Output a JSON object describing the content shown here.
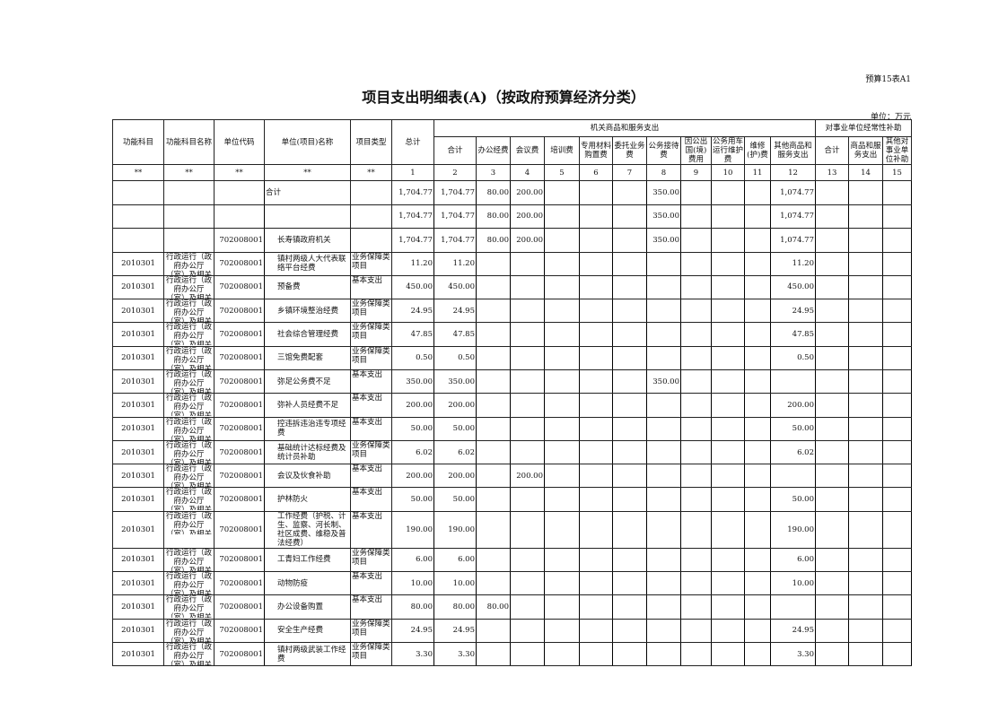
{
  "doc": {
    "code": "预算15表A1",
    "title": "项目支出明细表(A)（按政府预算经济分类）",
    "unit": "单位：万元"
  },
  "header": {
    "fixed": [
      "功能科目",
      "功能科目名称",
      "单位代码",
      "单位(项目)名称",
      "项目类型",
      "总计"
    ],
    "group1": "机关商品和服务支出",
    "group1_cols": [
      "合计",
      "办公经费",
      "会议费",
      "培训费",
      "专用材料购置费",
      "委托业务费",
      "公务接待费",
      "因公出国(境)费用",
      "公务用车运行维护费",
      "维修(护)费",
      "其他商品和服务支出"
    ],
    "group2": "对事业单位经常性补助",
    "group2_cols": [
      "合计",
      "商品和服务支出",
      "其他对事业单位补助"
    ],
    "index": [
      "**",
      "**",
      "**",
      "**",
      "**",
      "1",
      "2",
      "3",
      "4",
      "5",
      "6",
      "7",
      "8",
      "9",
      "10",
      "11",
      "12",
      "13",
      "14",
      "15"
    ]
  },
  "rows": [
    {
      "code": "",
      "name": "",
      "unit_code": "",
      "project": "合计",
      "type": "",
      "total": "1,704.77",
      "v": [
        "1,704.77",
        "80.00",
        "200.00",
        "",
        "",
        "",
        "350.00",
        "",
        "",
        "",
        "1,074.77",
        "",
        "",
        ""
      ]
    },
    {
      "code": "",
      "name": "",
      "unit_code": "",
      "project": "",
      "type": "",
      "total": "1,704.77",
      "v": [
        "1,704.77",
        "80.00",
        "200.00",
        "",
        "",
        "",
        "350.00",
        "",
        "",
        "",
        "1,074.77",
        "",
        "",
        ""
      ]
    },
    {
      "code": "",
      "name": "",
      "unit_code": "702008001",
      "project": "长寿镇政府机关",
      "type": "",
      "total": "1,704.77",
      "v": [
        "1,704.77",
        "80.00",
        "200.00",
        "",
        "",
        "",
        "350.00",
        "",
        "",
        "",
        "1,074.77",
        "",
        "",
        ""
      ]
    },
    {
      "code": "2010301",
      "name": "行政运行（政府办公厅（室）及相关",
      "unit_code": "702008001",
      "project": "镇村两级人大代表联络平台经费",
      "type": "业务保障类项目",
      "total": "11.20",
      "v": [
        "11.20",
        "",
        "",
        "",
        "",
        "",
        "",
        "",
        "",
        "",
        "11.20",
        "",
        "",
        ""
      ]
    },
    {
      "code": "2010301",
      "name": "行政运行（政府办公厅（室）及相关",
      "unit_code": "702008001",
      "project": "预备费",
      "type": "基本支出",
      "total": "450.00",
      "v": [
        "450.00",
        "",
        "",
        "",
        "",
        "",
        "",
        "",
        "",
        "",
        "450.00",
        "",
        "",
        ""
      ]
    },
    {
      "code": "2010301",
      "name": "行政运行（政府办公厅（室）及相关",
      "unit_code": "702008001",
      "project": "乡镇环境整治经费",
      "type": "业务保障类项目",
      "total": "24.95",
      "v": [
        "24.95",
        "",
        "",
        "",
        "",
        "",
        "",
        "",
        "",
        "",
        "24.95",
        "",
        "",
        ""
      ]
    },
    {
      "code": "2010301",
      "name": "行政运行（政府办公厅（室）及相关",
      "unit_code": "702008001",
      "project": "社会综合管理经费",
      "type": "业务保障类项目",
      "total": "47.85",
      "v": [
        "47.85",
        "",
        "",
        "",
        "",
        "",
        "",
        "",
        "",
        "",
        "47.85",
        "",
        "",
        ""
      ]
    },
    {
      "code": "2010301",
      "name": "行政运行（政府办公厅（室）及相关",
      "unit_code": "702008001",
      "project": "三馆免费配套",
      "type": "业务保障类项目",
      "total": "0.50",
      "v": [
        "0.50",
        "",
        "",
        "",
        "",
        "",
        "",
        "",
        "",
        "",
        "0.50",
        "",
        "",
        ""
      ]
    },
    {
      "code": "2010301",
      "name": "行政运行（政府办公厅（室）及相关",
      "unit_code": "702008001",
      "project": "弥足公务费不足",
      "type": "基本支出",
      "total": "350.00",
      "v": [
        "350.00",
        "",
        "",
        "",
        "",
        "",
        "350.00",
        "",
        "",
        "",
        "",
        "",
        "",
        ""
      ]
    },
    {
      "code": "2010301",
      "name": "行政运行（政府办公厅（室）及相关",
      "unit_code": "702008001",
      "project": "弥补人员经费不足",
      "type": "基本支出",
      "total": "200.00",
      "v": [
        "200.00",
        "",
        "",
        "",
        "",
        "",
        "",
        "",
        "",
        "",
        "200.00",
        "",
        "",
        ""
      ]
    },
    {
      "code": "2010301",
      "name": "行政运行（政府办公厅（室）及相关",
      "unit_code": "702008001",
      "project": "控违拆违治违专项经费",
      "type": "基本支出",
      "total": "50.00",
      "v": [
        "50.00",
        "",
        "",
        "",
        "",
        "",
        "",
        "",
        "",
        "",
        "50.00",
        "",
        "",
        ""
      ]
    },
    {
      "code": "2010301",
      "name": "行政运行（政府办公厅（室）及相关",
      "unit_code": "702008001",
      "project": "基础统计达标经费及统计员补助",
      "type": "业务保障类项目",
      "total": "6.02",
      "v": [
        "6.02",
        "",
        "",
        "",
        "",
        "",
        "",
        "",
        "",
        "",
        "6.02",
        "",
        "",
        ""
      ]
    },
    {
      "code": "2010301",
      "name": "行政运行（政府办公厅（室）及相关",
      "unit_code": "702008001",
      "project": "会议及伙食补助",
      "type": "基本支出",
      "total": "200.00",
      "v": [
        "200.00",
        "",
        "200.00",
        "",
        "",
        "",
        "",
        "",
        "",
        "",
        "",
        "",
        "",
        ""
      ]
    },
    {
      "code": "2010301",
      "name": "行政运行（政府办公厅（室）及相关",
      "unit_code": "702008001",
      "project": "护林防火",
      "type": "基本支出",
      "total": "50.00",
      "v": [
        "50.00",
        "",
        "",
        "",
        "",
        "",
        "",
        "",
        "",
        "",
        "50.00",
        "",
        "",
        ""
      ]
    },
    {
      "code": "2010301",
      "name": "行政运行（政府办公厅（室）及相关",
      "unit_code": "702008001",
      "project": "工作经费（护税、计生、监察、河长制、社区成费、维稳及普法经费）",
      "type": "基本支出",
      "total": "190.00",
      "v": [
        "190.00",
        "",
        "",
        "",
        "",
        "",
        "",
        "",
        "",
        "",
        "190.00",
        "",
        "",
        ""
      ]
    },
    {
      "code": "2010301",
      "name": "行政运行（政府办公厅（室）及相关",
      "unit_code": "702008001",
      "project": "工青妇工作经费",
      "type": "业务保障类项目",
      "total": "6.00",
      "v": [
        "6.00",
        "",
        "",
        "",
        "",
        "",
        "",
        "",
        "",
        "",
        "6.00",
        "",
        "",
        ""
      ]
    },
    {
      "code": "2010301",
      "name": "行政运行（政府办公厅（室）及相关",
      "unit_code": "702008001",
      "project": "动物防疫",
      "type": "基本支出",
      "total": "10.00",
      "v": [
        "10.00",
        "",
        "",
        "",
        "",
        "",
        "",
        "",
        "",
        "",
        "10.00",
        "",
        "",
        ""
      ]
    },
    {
      "code": "2010301",
      "name": "行政运行（政府办公厅（室）及相关",
      "unit_code": "702008001",
      "project": "办公设备购置",
      "type": "基本支出",
      "total": "80.00",
      "v": [
        "80.00",
        "80.00",
        "",
        "",
        "",
        "",
        "",
        "",
        "",
        "",
        "",
        "",
        "",
        ""
      ]
    },
    {
      "code": "2010301",
      "name": "行政运行（政府办公厅（室）及相关",
      "unit_code": "702008001",
      "project": "安全生产经费",
      "type": "业务保障类项目",
      "total": "24.95",
      "v": [
        "24.95",
        "",
        "",
        "",
        "",
        "",
        "",
        "",
        "",
        "",
        "24.95",
        "",
        "",
        ""
      ]
    },
    {
      "code": "2010301",
      "name": "行政运行（政府办公厅（室）及相关",
      "unit_code": "702008001",
      "project": "镇村两级武装工作经费",
      "type": "业务保障类项目",
      "total": "3.30",
      "v": [
        "3.30",
        "",
        "",
        "",
        "",
        "",
        "",
        "",
        "",
        "",
        "3.30",
        "",
        "",
        ""
      ]
    }
  ]
}
